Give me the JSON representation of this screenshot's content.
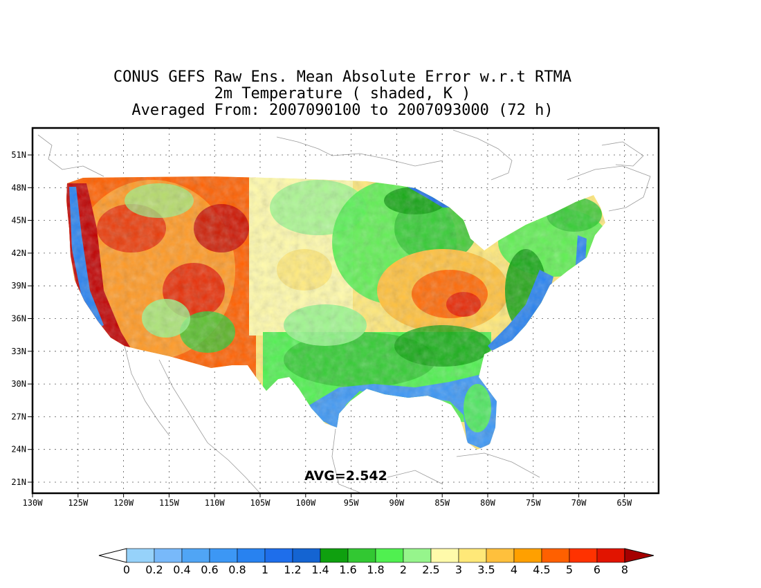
{
  "title": {
    "line1": "CONUS GEFS Raw Ens. Mean Absolute Error w.r.t RTMA",
    "line2": "2m Temperature ( shaded, K )",
    "line3": "Averaged From: 2007090100 to 2007093000 (72 h)"
  },
  "avg_label": "AVG=2.542",
  "lon_ticks": [
    "130W",
    "125W",
    "120W",
    "115W",
    "110W",
    "105W",
    "100W",
    "95W",
    "90W",
    "85W",
    "80W",
    "75W",
    "70W",
    "65W"
  ],
  "lat_ticks": [
    "51N",
    "48N",
    "45N",
    "42N",
    "39N",
    "36N",
    "33N",
    "30N",
    "27N",
    "24N",
    "21N"
  ],
  "colorbar": {
    "labels": [
      "0",
      "0.2",
      "0.4",
      "0.6",
      "0.8",
      "1",
      "1.2",
      "1.4",
      "1.6",
      "1.8",
      "2",
      "2.5",
      "3",
      "3.5",
      "4",
      "4.5",
      "5",
      "6",
      "8"
    ],
    "colors": [
      "#96d2fa",
      "#78b9fa",
      "#50a5f5",
      "#3c97f5",
      "#2882f0",
      "#1e6eeb",
      "#1464d2",
      "#0fa00f",
      "#32c832",
      "#50f050",
      "#96f58c",
      "#fffaaa",
      "#ffe878",
      "#ffc03c",
      "#ffa000",
      "#ff6000",
      "#ff3200",
      "#e11400",
      "#c00000"
    ],
    "under_color": "#ffffff",
    "over_color": "#a50000"
  }
}
